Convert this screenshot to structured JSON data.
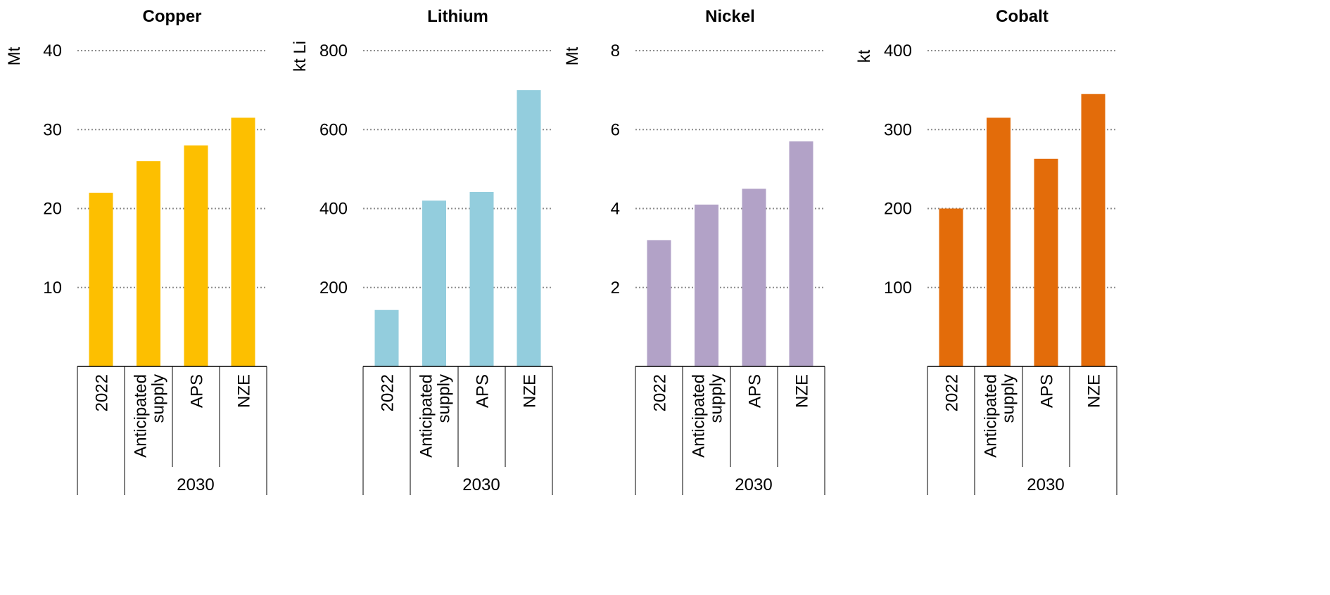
{
  "chart_data": [
    {
      "type": "bar",
      "title": "Copper",
      "ylabel": "Mt",
      "ylim": [
        0,
        40
      ],
      "yticks": [
        "10",
        "20",
        "30",
        "40"
      ],
      "ytick_values": [
        10,
        20,
        30,
        40
      ],
      "categories": [
        "2022",
        "Anticipated supply",
        "APS",
        "NZE"
      ],
      "category_lines": [
        [
          "2022"
        ],
        [
          "Anticipated",
          "supply"
        ],
        [
          "APS"
        ],
        [
          "NZE"
        ]
      ],
      "group_label": "2030",
      "values": [
        22,
        26,
        28,
        31.5
      ],
      "color": "#FDBF00",
      "grid": true
    },
    {
      "type": "bar",
      "title": "Lithium",
      "ylabel": "kt Li",
      "ylim": [
        0,
        800
      ],
      "yticks": [
        "200",
        "400",
        "600",
        "800"
      ],
      "ytick_values": [
        200,
        400,
        600,
        800
      ],
      "categories": [
        "2022",
        "Anticipated supply",
        "APS",
        "NZE"
      ],
      "category_lines": [
        [
          "2022"
        ],
        [
          "Anticipated",
          "supply"
        ],
        [
          "APS"
        ],
        [
          "NZE"
        ]
      ],
      "group_label": "2030",
      "values": [
        143,
        420,
        442,
        700
      ],
      "color": "#93CDDD",
      "grid": true
    },
    {
      "type": "bar",
      "title": "Nickel",
      "ylabel": "Mt",
      "ylim": [
        0,
        8
      ],
      "yticks": [
        "2",
        "4",
        "6",
        "8"
      ],
      "ytick_values": [
        2,
        4,
        6,
        8
      ],
      "categories": [
        "2022",
        "Anticipated supply",
        "APS",
        "NZE"
      ],
      "category_lines": [
        [
          "2022"
        ],
        [
          "Anticipated",
          "supply"
        ],
        [
          "APS"
        ],
        [
          "NZE"
        ]
      ],
      "group_label": "2030",
      "values": [
        3.2,
        4.1,
        4.5,
        5.7
      ],
      "color": "#B2A2C7",
      "grid": true
    },
    {
      "type": "bar",
      "title": "Cobalt",
      "ylabel": "kt",
      "ylim": [
        0,
        400
      ],
      "yticks": [
        "100",
        "200",
        "300",
        "400"
      ],
      "ytick_values": [
        100,
        200,
        300,
        400
      ],
      "categories": [
        "2022",
        "Anticipated supply",
        "APS",
        "NZE"
      ],
      "category_lines": [
        [
          "2022"
        ],
        [
          "Anticipated",
          "supply"
        ],
        [
          "APS"
        ],
        [
          "NZE"
        ]
      ],
      "group_label": "2030",
      "values": [
        200,
        315,
        263,
        345
      ],
      "color": "#E36C0A",
      "grid": true
    }
  ]
}
